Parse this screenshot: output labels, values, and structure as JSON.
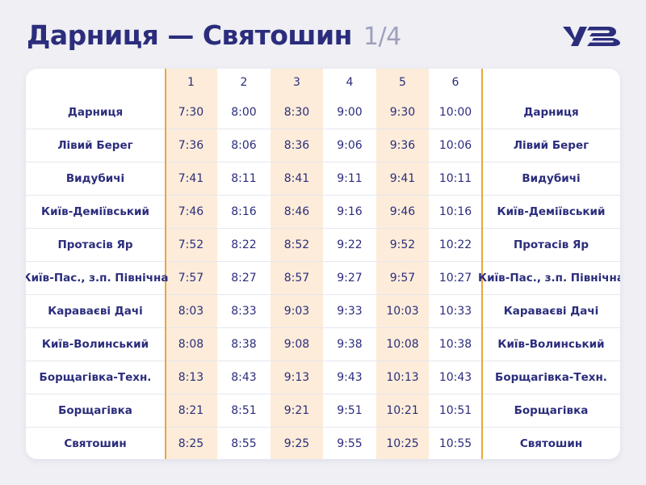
{
  "title": {
    "main": "Дарниця — Святошин",
    "page": "1/4"
  },
  "logo": {
    "icon": "uz-logo-icon",
    "text": "УЗ"
  },
  "colors": {
    "primary": "#2b2d7c",
    "accent": "#e8a73d",
    "tint": "#fcecd9",
    "background": "#efeff4"
  },
  "table": {
    "train_numbers": [
      "1",
      "2",
      "3",
      "4",
      "5",
      "6"
    ],
    "rows": [
      {
        "station": "Дарниця",
        "times": [
          "7:30",
          "8:00",
          "8:30",
          "9:00",
          "9:30",
          "10:00"
        ]
      },
      {
        "station": "Лівий Берег",
        "times": [
          "7:36",
          "8:06",
          "8:36",
          "9:06",
          "9:36",
          "10:06"
        ]
      },
      {
        "station": "Видубичі",
        "times": [
          "7:41",
          "8:11",
          "8:41",
          "9:11",
          "9:41",
          "10:11"
        ]
      },
      {
        "station": "Київ-Деміївський",
        "times": [
          "7:46",
          "8:16",
          "8:46",
          "9:16",
          "9:46",
          "10:16"
        ]
      },
      {
        "station": "Протасів Яр",
        "times": [
          "7:52",
          "8:22",
          "8:52",
          "9:22",
          "9:52",
          "10:22"
        ]
      },
      {
        "station": "Київ-Пас., з.п. Північна",
        "times": [
          "7:57",
          "8:27",
          "8:57",
          "9:27",
          "9:57",
          "10:27"
        ]
      },
      {
        "station": "Караваєві Дачі",
        "times": [
          "8:03",
          "8:33",
          "9:03",
          "9:33",
          "10:03",
          "10:33"
        ]
      },
      {
        "station": "Київ-Волинський",
        "times": [
          "8:08",
          "8:38",
          "9:08",
          "9:38",
          "10:08",
          "10:38"
        ]
      },
      {
        "station": "Борщагівка-Техн.",
        "times": [
          "8:13",
          "8:43",
          "9:13",
          "9:43",
          "10:13",
          "10:43"
        ]
      },
      {
        "station": "Борщагівка",
        "times": [
          "8:21",
          "8:51",
          "9:21",
          "9:51",
          "10:21",
          "10:51"
        ]
      },
      {
        "station": "Святошин",
        "times": [
          "8:25",
          "8:55",
          "9:25",
          "9:55",
          "10:25",
          "10:55"
        ]
      }
    ]
  }
}
